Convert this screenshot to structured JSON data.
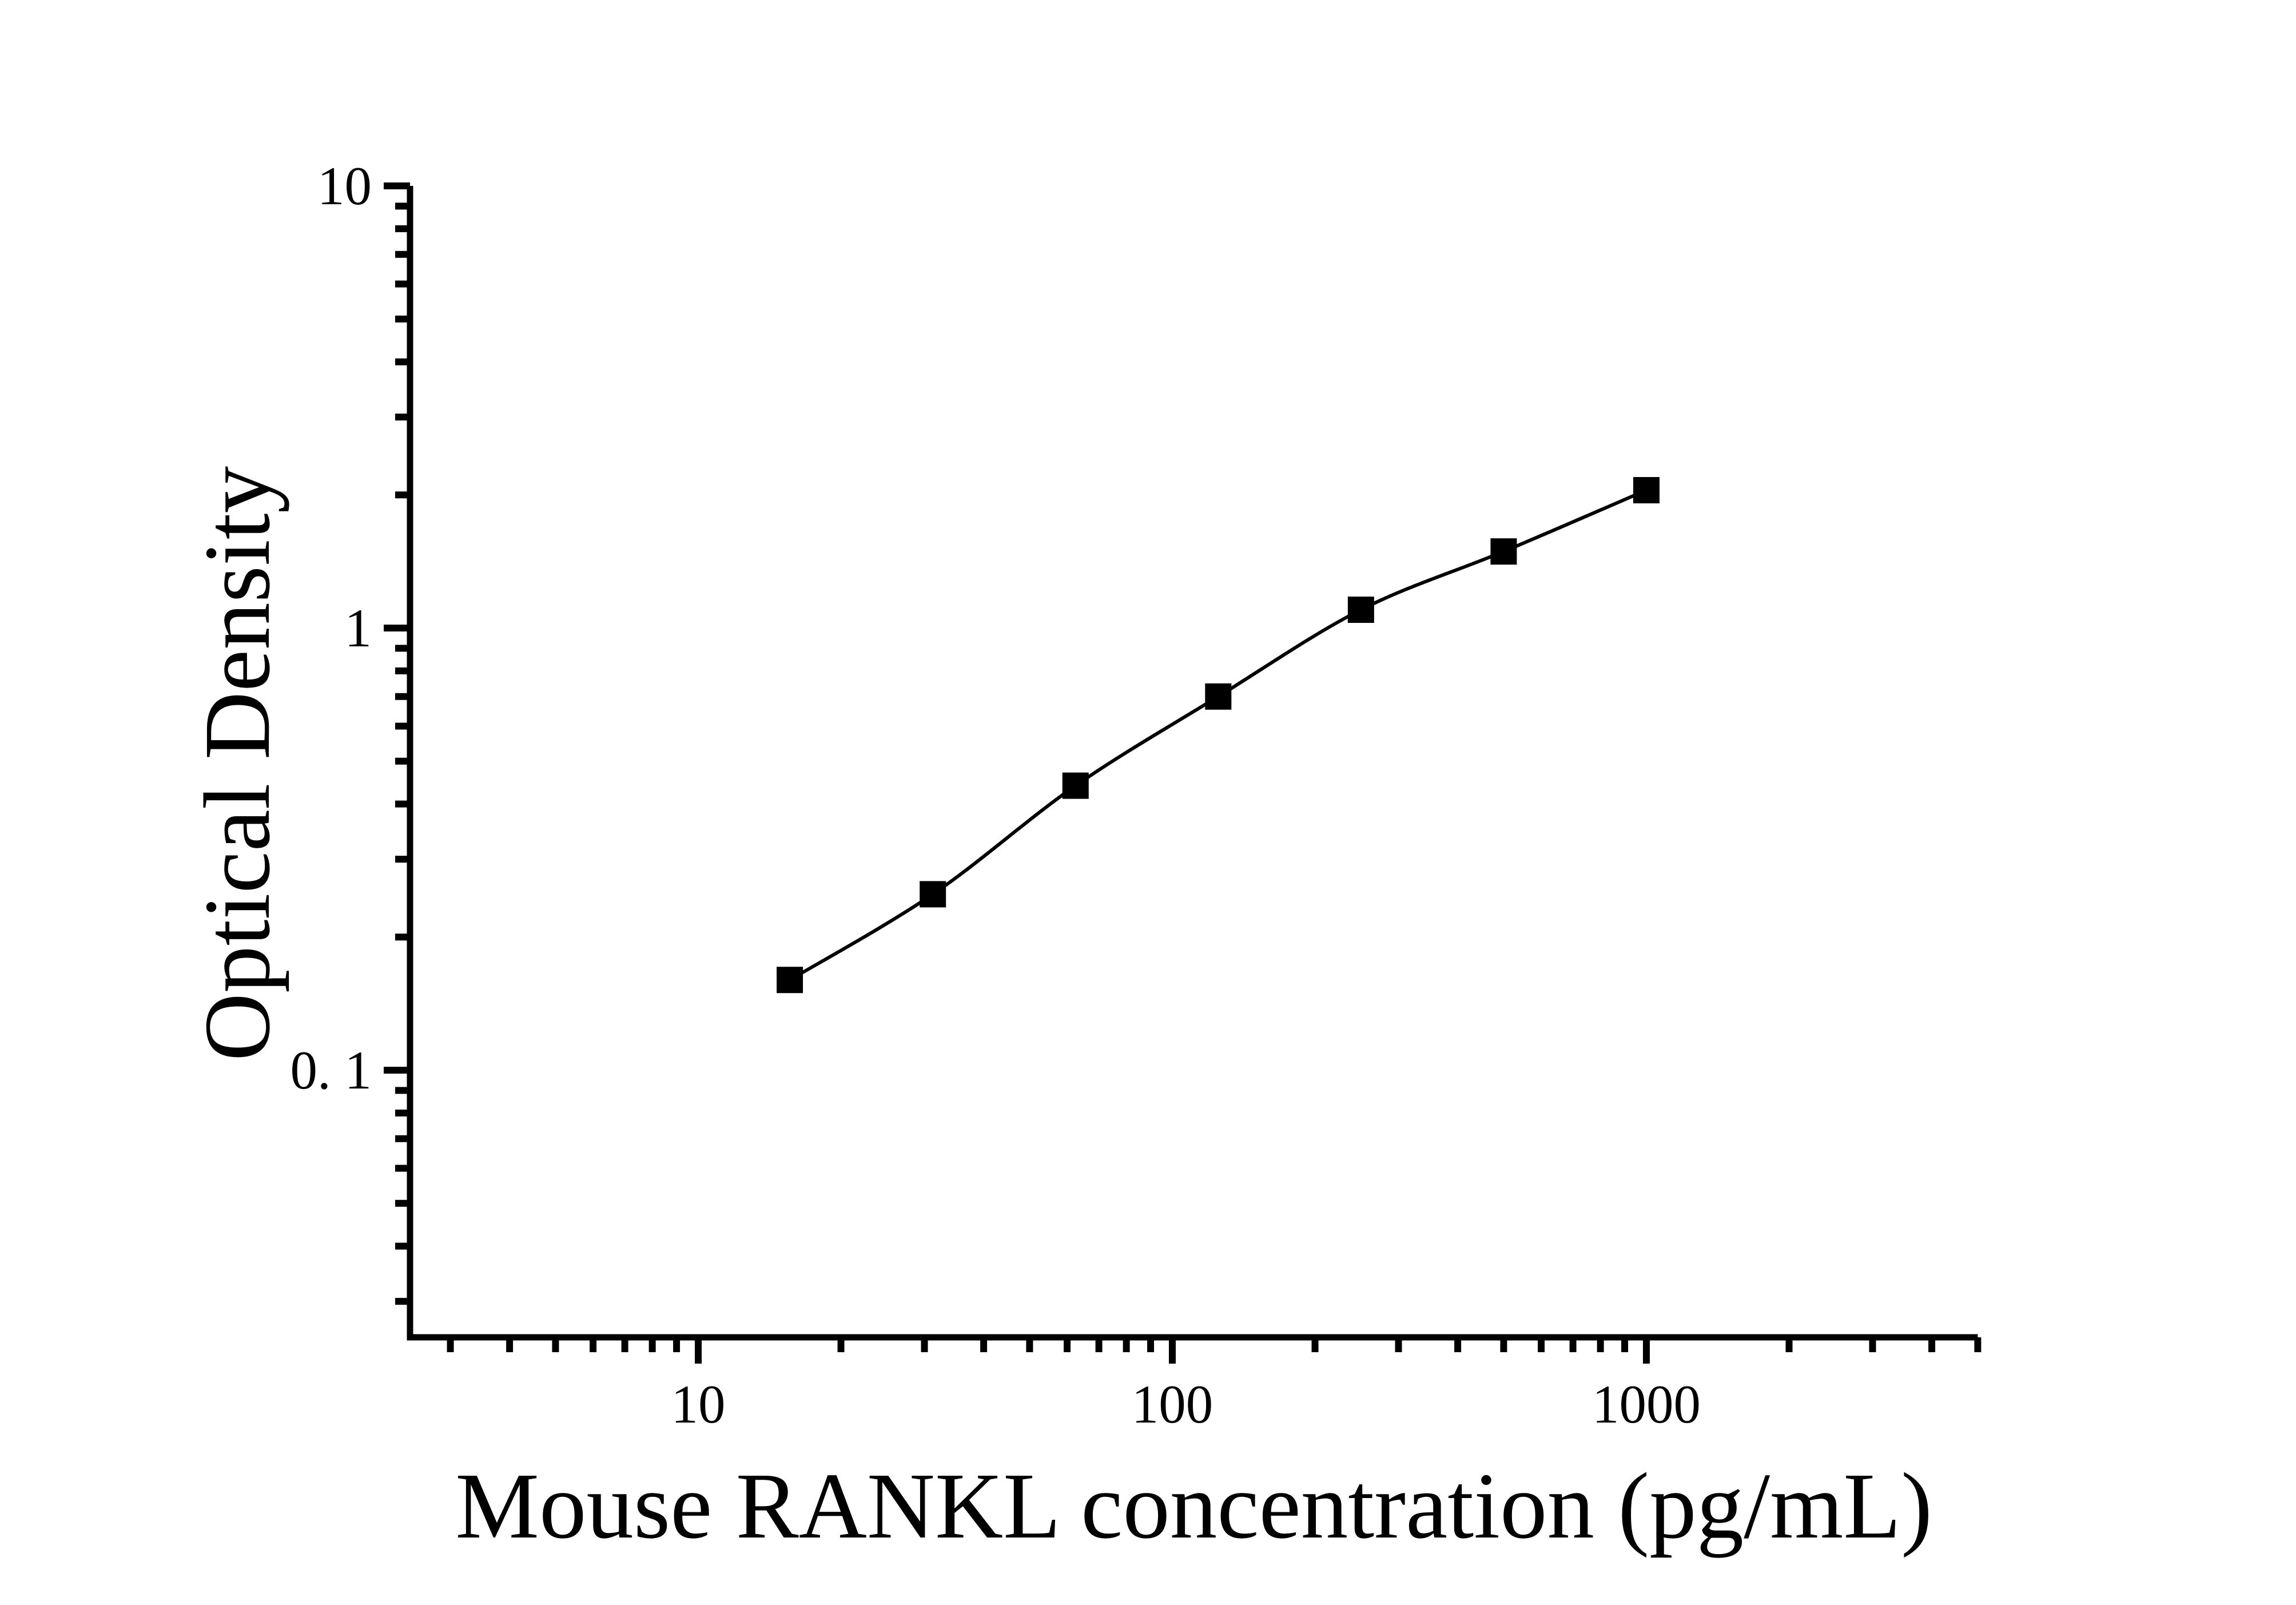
{
  "figure": {
    "background_color": "#ffffff",
    "ink_color": "#000000"
  },
  "chart_data": {
    "type": "line",
    "title": "",
    "xlabel": "Mouse RANKL concentration (pg/mL)",
    "ylabel": "Optical Density",
    "x_scale": "log",
    "y_scale": "log",
    "xlim": [
      2.5,
      5000
    ],
    "ylim": [
      0.025,
      10
    ],
    "grid": false,
    "legend": false,
    "series": [
      {
        "name": "standard-curve",
        "marker": "filled-square",
        "line_style": "smooth",
        "x": [
          15.6,
          31.25,
          62.5,
          125,
          250,
          500,
          1000
        ],
        "y": [
          0.16,
          0.25,
          0.44,
          0.7,
          1.1,
          1.49,
          2.05
        ]
      }
    ],
    "x_axis": {
      "major_ticks": [
        10,
        100,
        1000
      ],
      "tick_labels": [
        "10",
        "100",
        "1000"
      ],
      "minor_ticks": [
        3,
        4,
        5,
        6,
        7,
        8,
        9,
        20,
        30,
        40,
        50,
        60,
        70,
        80,
        90,
        200,
        300,
        400,
        500,
        600,
        700,
        800,
        900,
        2000,
        3000,
        4000,
        5000
      ]
    },
    "y_axis": {
      "major_ticks": [
        0.1,
        1,
        10
      ],
      "tick_labels": [
        "0. 1",
        "1",
        "10"
      ],
      "minor_ticks": [
        0.03,
        0.04,
        0.05,
        0.06,
        0.07,
        0.08,
        0.09,
        0.2,
        0.3,
        0.4,
        0.5,
        0.6,
        0.7,
        0.8,
        0.9,
        2,
        3,
        4,
        5,
        6,
        7,
        8,
        9
      ]
    }
  }
}
